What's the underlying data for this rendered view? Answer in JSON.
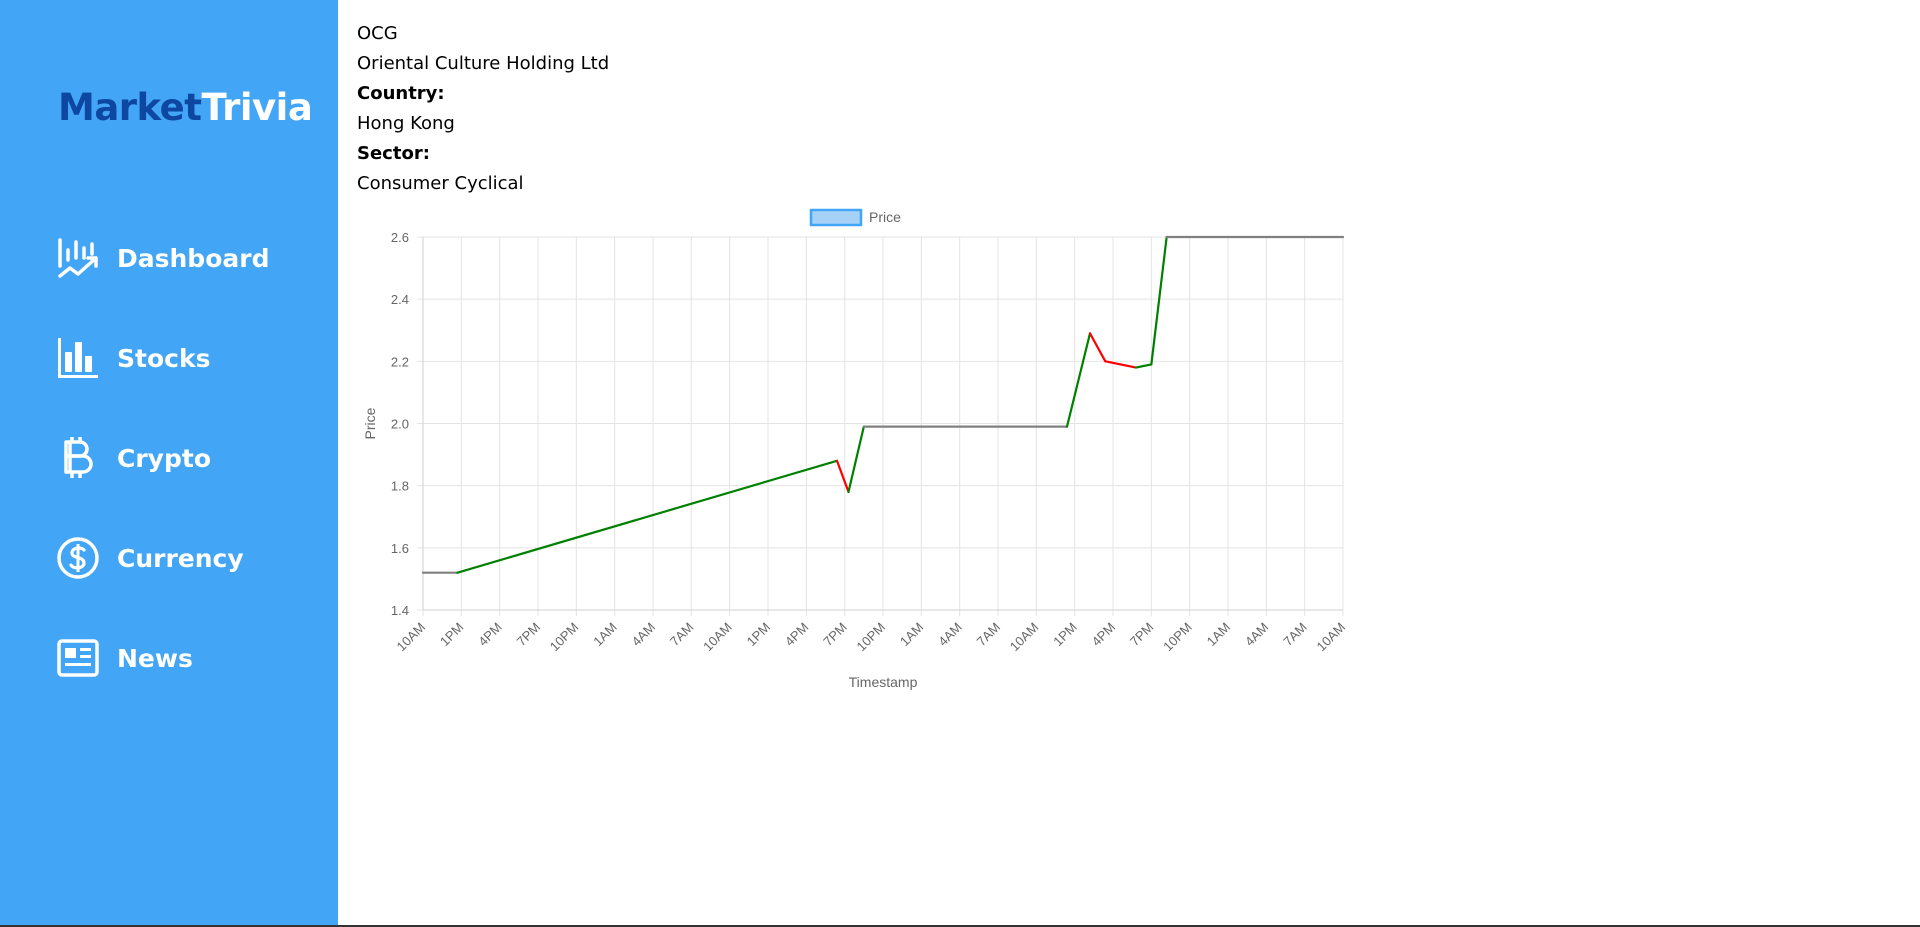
{
  "brand": {
    "part1": "Market",
    "part2": "Trivia"
  },
  "nav": [
    {
      "label": "Dashboard",
      "icon": "chart-trend-icon"
    },
    {
      "label": "Stocks",
      "icon": "bar-chart-icon"
    },
    {
      "label": "Crypto",
      "icon": "bitcoin-icon"
    },
    {
      "label": "Currency",
      "icon": "dollar-circle-icon"
    },
    {
      "label": "News",
      "icon": "newspaper-icon"
    }
  ],
  "stock": {
    "symbol": "OCG",
    "name": "Oriental Culture Holding Ltd",
    "country_label": "Country:",
    "country": "Hong Kong",
    "sector_label": "Sector:",
    "sector": "Consumer Cyclical"
  },
  "chart_data": {
    "type": "line",
    "legend": [
      "Price"
    ],
    "xlabel": "Timestamp",
    "ylabel": "Price",
    "ylim": [
      1.4,
      2.6
    ],
    "yticks": [
      1.4,
      1.6,
      1.8,
      2.0,
      2.2,
      2.4,
      2.6
    ],
    "x": [
      "10AM",
      "1PM",
      "4PM",
      "7PM",
      "10PM",
      "1AM",
      "4AM",
      "7AM",
      "10AM",
      "1PM",
      "4PM",
      "7PM",
      "10PM",
      "1AM",
      "4AM",
      "7AM",
      "10AM",
      "1PM",
      "4PM",
      "7PM",
      "10PM",
      "1AM",
      "4AM",
      "7AM",
      "10AM"
    ],
    "grid": true,
    "legend_position": "top",
    "colors": {
      "up": "#008000",
      "down": "#ff0000",
      "flat": "#808080"
    },
    "series": [
      {
        "name": "Price",
        "points": [
          [
            0,
            1.52
          ],
          [
            0.9,
            1.52
          ],
          [
            10.8,
            1.88
          ],
          [
            11.1,
            1.78
          ],
          [
            11.5,
            1.99
          ],
          [
            16.0,
            1.99
          ],
          [
            16.8,
            1.99
          ],
          [
            17.4,
            2.29
          ],
          [
            17.8,
            2.2
          ],
          [
            18.6,
            2.18
          ],
          [
            19.0,
            2.19
          ],
          [
            19.4,
            2.6
          ],
          [
            24.0,
            2.6
          ]
        ]
      }
    ]
  }
}
